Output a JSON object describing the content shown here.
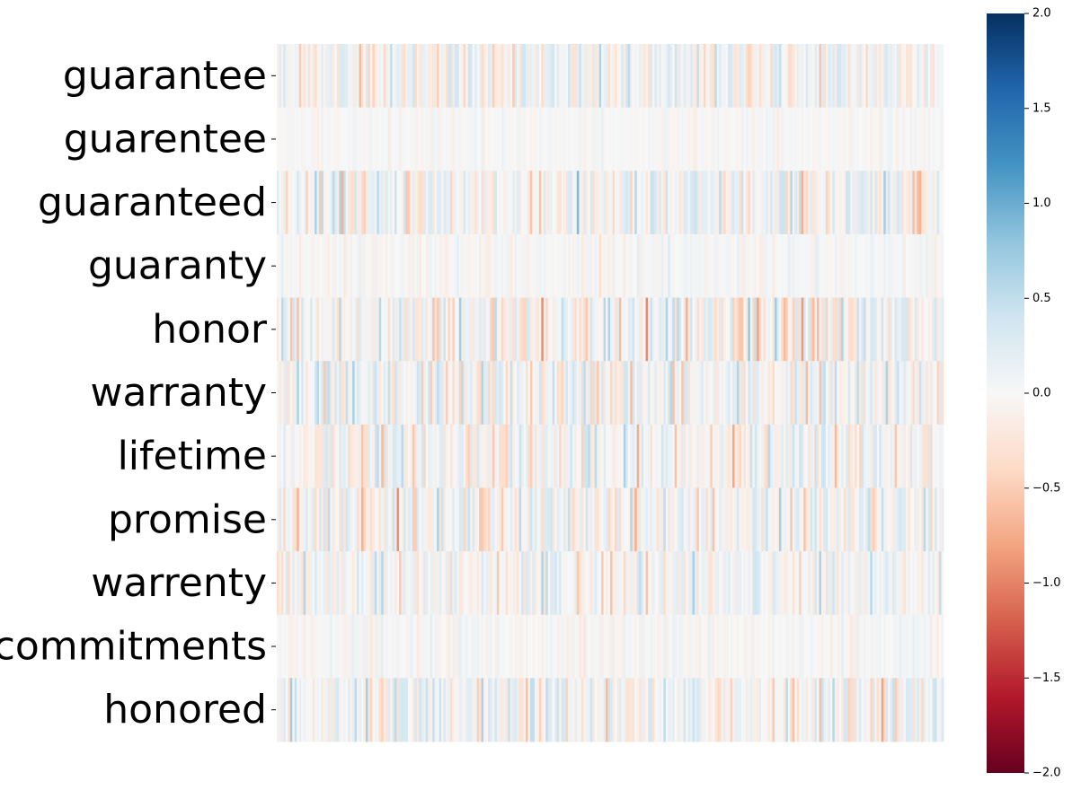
{
  "chart_data": {
    "type": "heatmap",
    "rows": [
      "guarantee",
      "guarentee",
      "guaranteed",
      "guaranty",
      "honor",
      "warranty",
      "lifetime",
      "promise",
      "warrenty",
      "commitments",
      "honored"
    ],
    "num_columns": 300,
    "row_amplitudes": [
      0.45,
      0.1,
      0.5,
      0.15,
      0.6,
      0.5,
      0.45,
      0.45,
      0.4,
      0.15,
      0.45
    ],
    "value_range": [
      -2,
      2
    ],
    "colormap": "RdBu",
    "colorbar": {
      "ticks": [
        2.0,
        1.5,
        1.0,
        0.5,
        0.0,
        -0.5,
        -1.0,
        -1.5,
        -2.0
      ],
      "tick_labels": [
        "2.0",
        "1.5",
        "1.0",
        "0.5",
        "0.0",
        "−0.5",
        "−1.0",
        "−1.5",
        "−2.0"
      ],
      "placement": "right"
    },
    "xlabel": "",
    "ylabel": "",
    "title": ""
  }
}
